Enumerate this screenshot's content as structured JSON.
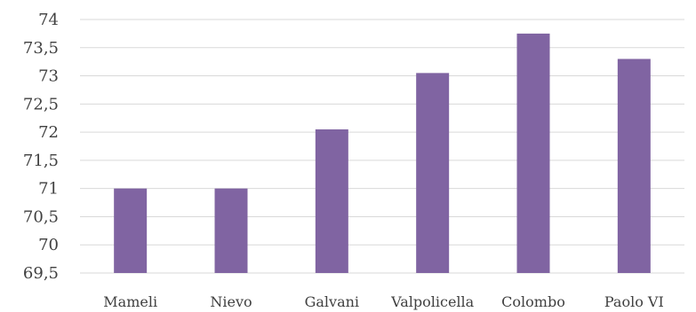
{
  "chart_data": {
    "type": "bar",
    "categories": [
      "Mameli",
      "Nievo",
      "Galvani",
      "Valpolicella",
      "Colombo",
      "Paolo VI"
    ],
    "values": [
      71.0,
      71.0,
      72.05,
      73.05,
      73.75,
      73.3
    ],
    "title": "",
    "xlabel": "",
    "ylabel": "",
    "ylim": [
      69.5,
      74
    ],
    "yticks": [
      "69,5",
      "70",
      "70,5",
      "71",
      "71,5",
      "72",
      "72,5",
      "73",
      "73,5",
      "74"
    ],
    "grid": true,
    "legend": "none",
    "bar_color": "#8064a2",
    "grid_color": "#d9d9d9",
    "text_color": "#404040"
  }
}
